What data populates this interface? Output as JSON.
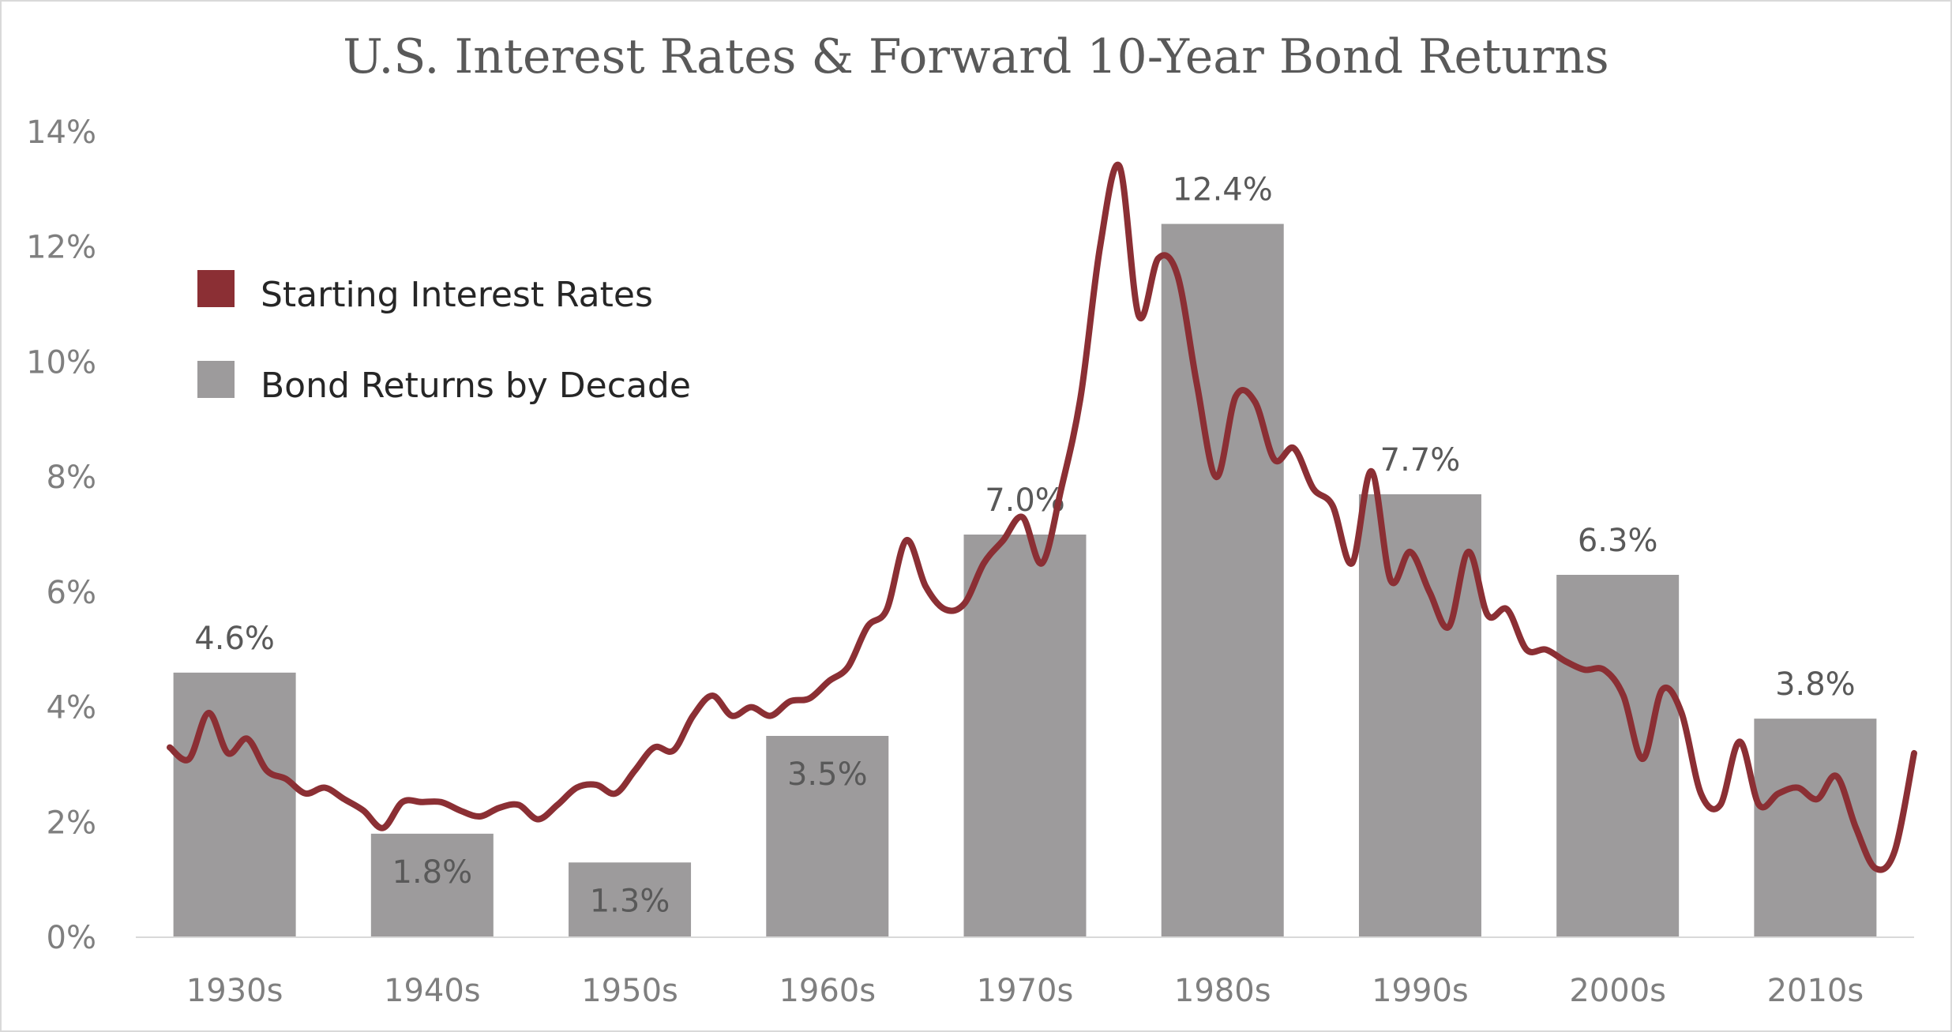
{
  "chart_data": {
    "type": "bar",
    "title": "U.S. Interest Rates & Forward 10-Year Bond Returns",
    "xlabel": "",
    "ylabel": "",
    "ylim": [
      0,
      14
    ],
    "y_ticks": [
      "0%",
      "2%",
      "4%",
      "6%",
      "8%",
      "10%",
      "12%",
      "14%"
    ],
    "grid": false,
    "legend_position": "top-left",
    "colors": {
      "bars": "#9d9b9c",
      "line": "#8b2f34"
    },
    "categories": [
      "1930s",
      "1940s",
      "1950s",
      "1960s",
      "1970s",
      "1980s",
      "1990s",
      "2000s",
      "2010s"
    ],
    "series": [
      {
        "name": "Bond Returns by Decade",
        "type": "bar",
        "values": [
          4.6,
          1.8,
          1.3,
          3.5,
          7.0,
          12.4,
          7.7,
          6.3,
          3.8
        ],
        "labels": [
          "4.6%",
          "1.8%",
          "1.3%",
          "3.5%",
          "7.0%",
          "12.4%",
          "7.7%",
          "6.3%",
          "3.8%"
        ]
      },
      {
        "name": "Starting Interest Rates",
        "type": "line",
        "x": [
          1930,
          1931,
          1932,
          1933,
          1934,
          1935,
          1936,
          1937,
          1938,
          1939,
          1940,
          1941,
          1942,
          1943,
          1944,
          1945,
          1946,
          1947,
          1948,
          1949,
          1950,
          1951,
          1952,
          1953,
          1954,
          1955,
          1956,
          1957,
          1958,
          1959,
          1960,
          1961,
          1962,
          1963,
          1964,
          1965,
          1966,
          1967,
          1968,
          1969,
          1970,
          1971,
          1972,
          1973,
          1974,
          1975,
          1976,
          1977,
          1978,
          1979,
          1980,
          1981,
          1982,
          1983,
          1984,
          1985,
          1986,
          1987,
          1988,
          1989,
          1990,
          1991,
          1992,
          1993,
          1994,
          1995,
          1996,
          1997,
          1998,
          1999,
          2000,
          2001,
          2002,
          2003,
          2004,
          2005,
          2006,
          2007,
          2008,
          2009,
          2010,
          2011,
          2012,
          2013,
          2014,
          2015,
          2016,
          2017,
          2018,
          2019,
          2020
        ],
        "values": [
          3.3,
          3.1,
          3.9,
          3.2,
          3.45,
          2.9,
          2.75,
          2.5,
          2.6,
          2.4,
          2.2,
          1.9,
          2.35,
          2.35,
          2.35,
          2.2,
          2.1,
          2.25,
          2.3,
          2.05,
          2.3,
          2.6,
          2.65,
          2.5,
          2.9,
          3.3,
          3.25,
          3.85,
          4.2,
          3.85,
          4.0,
          3.85,
          4.1,
          4.15,
          4.45,
          4.7,
          5.4,
          5.7,
          6.9,
          6.1,
          5.7,
          5.8,
          6.5,
          6.9,
          7.3,
          6.5,
          7.8,
          9.4,
          12.0,
          13.4,
          10.8,
          11.8,
          11.5,
          9.6,
          8.0,
          9.4,
          9.3,
          8.3,
          8.5,
          7.8,
          7.5,
          6.5,
          8.1,
          6.2,
          6.7,
          6.0,
          5.4,
          6.7,
          5.6,
          5.7,
          5.0,
          5.0,
          4.8,
          4.65,
          4.65,
          4.2,
          3.1,
          4.3,
          3.9,
          2.5,
          2.3,
          3.4,
          2.3,
          2.5,
          2.6,
          2.4,
          2.8,
          1.9,
          1.2,
          1.5,
          3.2
        ]
      }
    ]
  }
}
